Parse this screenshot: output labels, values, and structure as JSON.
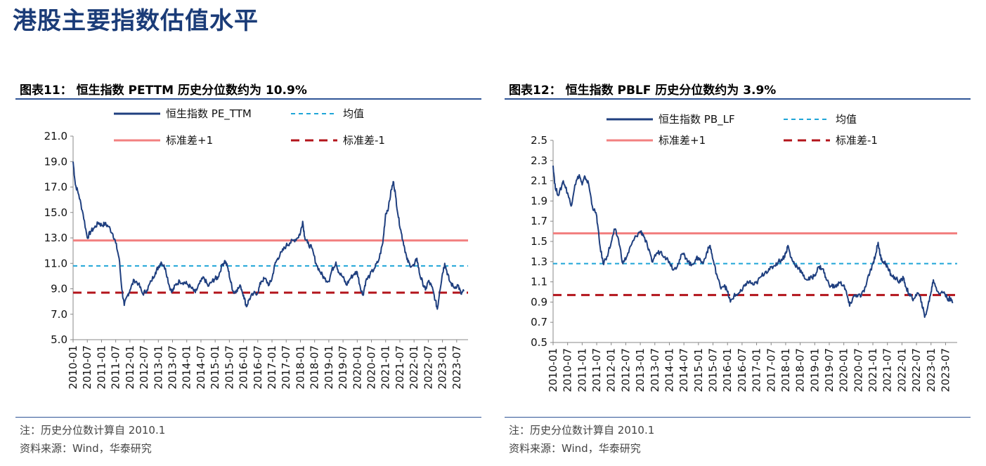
{
  "page": {
    "title": "港股主要指数估值水平"
  },
  "colors": {
    "series": "#1f3f7f",
    "mean": "#1fa5d8",
    "plus": "#f28080",
    "minus": "#b3141b",
    "rule": "#2f5597"
  },
  "left_panel": {
    "fig_title": "图表11：  恒生指数 PETTM 历史分位数约为 10.9%",
    "note": "注：历史分位数计算自 2010.1",
    "source": "资料来源：Wind，华泰研究"
  },
  "right_panel": {
    "fig_title": "图表12：  恒生指数 PBLF 历史分位数约为 3.9%",
    "note": "注：历史分位数计算自 2010.1",
    "source": "资料来源：Wind，华泰研究"
  },
  "chart_data": [
    {
      "type": "line",
      "title": "恒生指数 PETTM 历史分位数约为 10.9%",
      "xlabel": "",
      "ylabel": "",
      "ylim": [
        5.0,
        21.0
      ],
      "yticks": [
        "5.0",
        "7.0",
        "9.0",
        "11.0",
        "13.0",
        "15.0",
        "17.0",
        "19.0",
        "21.0"
      ],
      "xticks": [
        "2010-01",
        "2010-07",
        "2011-01",
        "2011-07",
        "2012-01",
        "2012-07",
        "2013-01",
        "2013-07",
        "2014-01",
        "2014-07",
        "2015-01",
        "2015-07",
        "2016-01",
        "2016-07",
        "2017-01",
        "2017-07",
        "2018-01",
        "2018-07",
        "2019-01",
        "2019-07",
        "2020-01",
        "2020-07",
        "2021-01",
        "2021-07",
        "2022-01",
        "2022-07",
        "2023-01",
        "2023-07"
      ],
      "legend": [
        "恒生指数 PE_TTM",
        "均值",
        "标准差+1",
        "标准差-1"
      ],
      "reference_lines": {
        "mean": 10.8,
        "plus_1sd": 12.8,
        "minus_1sd": 8.7
      },
      "series": [
        {
          "name": "恒生指数 PE_TTM",
          "values": [
            [
              2010.0,
              19.0
            ],
            [
              2010.08,
              17.2
            ],
            [
              2010.2,
              16.4
            ],
            [
              2010.35,
              14.9
            ],
            [
              2010.5,
              13.0
            ],
            [
              2010.62,
              13.5
            ],
            [
              2010.75,
              13.8
            ],
            [
              2010.9,
              14.2
            ],
            [
              2011.0,
              14.0
            ],
            [
              2011.12,
              14.1
            ],
            [
              2011.25,
              13.9
            ],
            [
              2011.4,
              13.3
            ],
            [
              2011.5,
              12.6
            ],
            [
              2011.62,
              11.4
            ],
            [
              2011.72,
              8.9
            ],
            [
              2011.8,
              7.7
            ],
            [
              2011.92,
              8.5
            ],
            [
              2012.0,
              8.9
            ],
            [
              2012.15,
              9.7
            ],
            [
              2012.3,
              9.4
            ],
            [
              2012.45,
              8.6
            ],
            [
              2012.6,
              8.9
            ],
            [
              2012.75,
              9.6
            ],
            [
              2012.9,
              10.3
            ],
            [
              2013.0,
              10.7
            ],
            [
              2013.1,
              11.1
            ],
            [
              2013.25,
              10.6
            ],
            [
              2013.4,
              9.1
            ],
            [
              2013.5,
              8.8
            ],
            [
              2013.6,
              9.3
            ],
            [
              2013.75,
              9.6
            ],
            [
              2013.9,
              9.5
            ],
            [
              2014.0,
              9.4
            ],
            [
              2014.15,
              9.1
            ],
            [
              2014.3,
              8.7
            ],
            [
              2014.45,
              9.4
            ],
            [
              2014.6,
              9.9
            ],
            [
              2014.75,
              9.2
            ],
            [
              2014.9,
              9.6
            ],
            [
              2015.0,
              9.8
            ],
            [
              2015.1,
              9.9
            ],
            [
              2015.25,
              10.9
            ],
            [
              2015.35,
              11.2
            ],
            [
              2015.45,
              10.6
            ],
            [
              2015.55,
              9.5
            ],
            [
              2015.65,
              8.7
            ],
            [
              2015.75,
              8.9
            ],
            [
              2015.9,
              9.2
            ],
            [
              2016.0,
              8.5
            ],
            [
              2016.1,
              7.6
            ],
            [
              2016.2,
              8.2
            ],
            [
              2016.35,
              8.6
            ],
            [
              2016.5,
              8.7
            ],
            [
              2016.62,
              9.6
            ],
            [
              2016.75,
              9.8
            ],
            [
              2016.9,
              9.3
            ],
            [
              2017.0,
              9.8
            ],
            [
              2017.1,
              10.9
            ],
            [
              2017.2,
              11.4
            ],
            [
              2017.35,
              11.9
            ],
            [
              2017.5,
              12.4
            ],
            [
              2017.62,
              12.6
            ],
            [
              2017.75,
              12.8
            ],
            [
              2017.9,
              13.0
            ],
            [
              2018.0,
              13.4
            ],
            [
              2018.08,
              14.3
            ],
            [
              2018.15,
              13.1
            ],
            [
              2018.25,
              12.6
            ],
            [
              2018.4,
              12.2
            ],
            [
              2018.55,
              11.0
            ],
            [
              2018.7,
              10.3
            ],
            [
              2018.85,
              9.8
            ],
            [
              2019.0,
              9.6
            ],
            [
              2019.1,
              10.4
            ],
            [
              2019.25,
              11.1
            ],
            [
              2019.35,
              10.3
            ],
            [
              2019.5,
              9.9
            ],
            [
              2019.62,
              9.3
            ],
            [
              2019.75,
              9.8
            ],
            [
              2019.9,
              10.2
            ],
            [
              2020.0,
              10.3
            ],
            [
              2020.1,
              9.2
            ],
            [
              2020.2,
              8.5
            ],
            [
              2020.3,
              9.6
            ],
            [
              2020.45,
              10.1
            ],
            [
              2020.6,
              10.6
            ],
            [
              2020.75,
              11.2
            ],
            [
              2020.9,
              12.6
            ],
            [
              2021.0,
              14.9
            ],
            [
              2021.1,
              15.4
            ],
            [
              2021.2,
              16.8
            ],
            [
              2021.28,
              17.4
            ],
            [
              2021.35,
              16.3
            ],
            [
              2021.45,
              14.6
            ],
            [
              2021.55,
              13.4
            ],
            [
              2021.65,
              12.4
            ],
            [
              2021.75,
              11.3
            ],
            [
              2021.85,
              10.9
            ],
            [
              2022.0,
              10.8
            ],
            [
              2022.1,
              11.4
            ],
            [
              2022.2,
              10.1
            ],
            [
              2022.3,
              9.5
            ],
            [
              2022.4,
              8.9
            ],
            [
              2022.5,
              9.6
            ],
            [
              2022.62,
              9.2
            ],
            [
              2022.75,
              8.1
            ],
            [
              2022.82,
              7.4
            ],
            [
              2022.9,
              8.8
            ],
            [
              2023.0,
              10.2
            ],
            [
              2023.08,
              11.0
            ],
            [
              2023.15,
              10.4
            ],
            [
              2023.25,
              9.6
            ],
            [
              2023.4,
              9.1
            ],
            [
              2023.55,
              9.3
            ],
            [
              2023.65,
              8.6
            ],
            [
              2023.75,
              8.8
            ]
          ]
        }
      ]
    },
    {
      "type": "line",
      "title": "恒生指数 PBLF 历史分位数约为 3.9%",
      "xlabel": "",
      "ylabel": "",
      "ylim": [
        0.5,
        2.5
      ],
      "yticks": [
        "0.5",
        "0.7",
        "0.9",
        "1.1",
        "1.3",
        "1.5",
        "1.7",
        "1.9",
        "2.1",
        "2.3",
        "2.5"
      ],
      "xticks": [
        "2010-01",
        "2010-07",
        "2011-01",
        "2011-07",
        "2012-01",
        "2012-07",
        "2013-01",
        "2013-07",
        "2014-01",
        "2014-07",
        "2015-01",
        "2015-07",
        "2016-01",
        "2016-07",
        "2017-01",
        "2017-07",
        "2018-01",
        "2018-07",
        "2019-01",
        "2019-07",
        "2020-01",
        "2020-07",
        "2021-01",
        "2021-07",
        "2022-01",
        "2022-07",
        "2023-01",
        "2023-07"
      ],
      "legend": [
        "恒生指数 PB_LF",
        "均值",
        "标准差+1",
        "标准差-1"
      ],
      "reference_lines": {
        "mean": 1.28,
        "plus_1sd": 1.58,
        "minus_1sd": 0.97
      },
      "series": [
        {
          "name": "恒生指数 PB_LF",
          "values": [
            [
              2010.0,
              2.25
            ],
            [
              2010.08,
              2.02
            ],
            [
              2010.2,
              1.96
            ],
            [
              2010.35,
              2.1
            ],
            [
              2010.5,
              1.98
            ],
            [
              2010.62,
              1.85
            ],
            [
              2010.75,
              2.06
            ],
            [
              2010.9,
              2.16
            ],
            [
              2011.0,
              2.06
            ],
            [
              2011.1,
              2.14
            ],
            [
              2011.22,
              2.07
            ],
            [
              2011.35,
              1.85
            ],
            [
              2011.5,
              1.75
            ],
            [
              2011.6,
              1.48
            ],
            [
              2011.72,
              1.28
            ],
            [
              2011.85,
              1.35
            ],
            [
              2012.0,
              1.49
            ],
            [
              2012.12,
              1.62
            ],
            [
              2012.25,
              1.52
            ],
            [
              2012.4,
              1.28
            ],
            [
              2012.55,
              1.36
            ],
            [
              2012.7,
              1.47
            ],
            [
              2012.85,
              1.55
            ],
            [
              2013.0,
              1.6
            ],
            [
              2013.1,
              1.57
            ],
            [
              2013.25,
              1.45
            ],
            [
              2013.4,
              1.3
            ],
            [
              2013.55,
              1.38
            ],
            [
              2013.7,
              1.4
            ],
            [
              2013.85,
              1.35
            ],
            [
              2014.0,
              1.3
            ],
            [
              2014.15,
              1.22
            ],
            [
              2014.3,
              1.28
            ],
            [
              2014.45,
              1.38
            ],
            [
              2014.6,
              1.33
            ],
            [
              2014.75,
              1.26
            ],
            [
              2014.9,
              1.32
            ],
            [
              2015.0,
              1.34
            ],
            [
              2015.15,
              1.28
            ],
            [
              2015.3,
              1.4
            ],
            [
              2015.4,
              1.46
            ],
            [
              2015.5,
              1.32
            ],
            [
              2015.62,
              1.18
            ],
            [
              2015.75,
              1.05
            ],
            [
              2015.9,
              1.07
            ],
            [
              2016.0,
              1.0
            ],
            [
              2016.1,
              0.9
            ],
            [
              2016.22,
              0.96
            ],
            [
              2016.35,
              0.98
            ],
            [
              2016.5,
              1.01
            ],
            [
              2016.62,
              1.08
            ],
            [
              2016.75,
              1.1
            ],
            [
              2016.9,
              1.07
            ],
            [
              2017.0,
              1.09
            ],
            [
              2017.15,
              1.15
            ],
            [
              2017.3,
              1.2
            ],
            [
              2017.45,
              1.22
            ],
            [
              2017.6,
              1.26
            ],
            [
              2017.75,
              1.3
            ],
            [
              2017.9,
              1.33
            ],
            [
              2018.0,
              1.38
            ],
            [
              2018.08,
              1.46
            ],
            [
              2018.18,
              1.34
            ],
            [
              2018.3,
              1.28
            ],
            [
              2018.45,
              1.24
            ],
            [
              2018.6,
              1.16
            ],
            [
              2018.75,
              1.12
            ],
            [
              2018.9,
              1.14
            ],
            [
              2019.0,
              1.17
            ],
            [
              2019.15,
              1.25
            ],
            [
              2019.28,
              1.23
            ],
            [
              2019.4,
              1.12
            ],
            [
              2019.55,
              1.06
            ],
            [
              2019.7,
              1.05
            ],
            [
              2019.85,
              1.09
            ],
            [
              2020.0,
              1.07
            ],
            [
              2020.1,
              0.98
            ],
            [
              2020.2,
              0.86
            ],
            [
              2020.32,
              0.95
            ],
            [
              2020.45,
              0.97
            ],
            [
              2020.6,
              0.96
            ],
            [
              2020.75,
              1.05
            ],
            [
              2020.9,
              1.2
            ],
            [
              2021.0,
              1.28
            ],
            [
              2021.1,
              1.38
            ],
            [
              2021.18,
              1.49
            ],
            [
              2021.25,
              1.36
            ],
            [
              2021.35,
              1.3
            ],
            [
              2021.45,
              1.28
            ],
            [
              2021.55,
              1.21
            ],
            [
              2021.65,
              1.16
            ],
            [
              2021.8,
              1.13
            ],
            [
              2021.95,
              1.1
            ],
            [
              2022.05,
              1.14
            ],
            [
              2022.15,
              1.04
            ],
            [
              2022.28,
              0.96
            ],
            [
              2022.4,
              0.93
            ],
            [
              2022.55,
              0.99
            ],
            [
              2022.68,
              0.9
            ],
            [
              2022.78,
              0.75
            ],
            [
              2022.88,
              0.84
            ],
            [
              2023.0,
              1.0
            ],
            [
              2023.08,
              1.12
            ],
            [
              2023.18,
              1.04
            ],
            [
              2023.3,
              0.98
            ],
            [
              2023.45,
              1.0
            ],
            [
              2023.55,
              0.94
            ],
            [
              2023.65,
              0.93
            ],
            [
              2023.75,
              0.89
            ]
          ]
        }
      ]
    }
  ]
}
